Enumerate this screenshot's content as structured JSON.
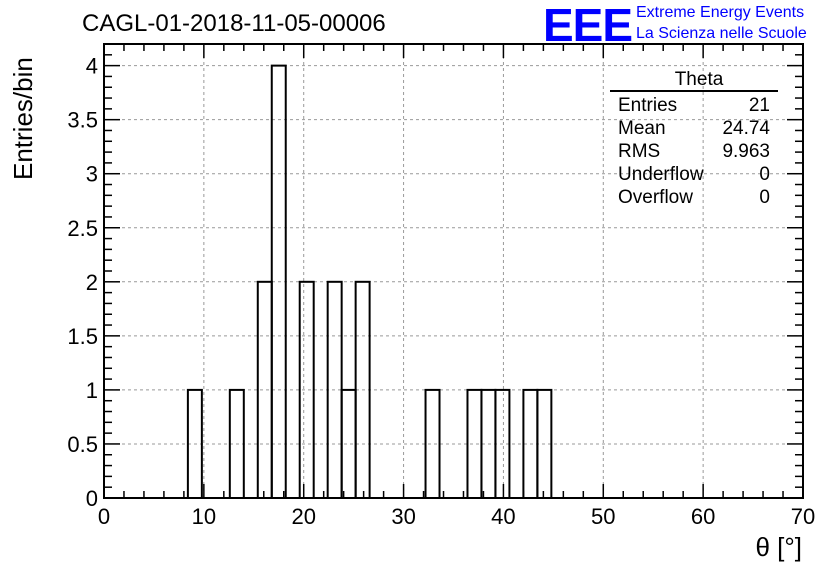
{
  "header": {
    "title": "CAGL-01-2018-11-05-00006",
    "logo": "EEE",
    "logo_line1": "Extreme Energy Events",
    "logo_line2": "La Scienza nelle Scuole"
  },
  "stats_box": {
    "title": "Theta",
    "rows": [
      {
        "label": "Entries",
        "value": "21"
      },
      {
        "label": "Mean",
        "value": "24.74"
      },
      {
        "label": "RMS",
        "value": "9.963"
      },
      {
        "label": "Underflow",
        "value": "0"
      },
      {
        "label": "Overflow",
        "value": "0"
      }
    ]
  },
  "chart_data": {
    "type": "bar",
    "histogram": true,
    "title": "CAGL-01-2018-11-05-00006",
    "xlabel": "θ [°]",
    "ylabel": "Entries/bin",
    "xlim": [
      0,
      70
    ],
    "ylim": [
      0,
      4.2
    ],
    "bin_width": 1.4,
    "x_ticks": [
      "0",
      "10",
      "20",
      "30",
      "40",
      "50",
      "60",
      "70"
    ],
    "y_ticks": [
      "0",
      "0.5",
      "1",
      "1.5",
      "2",
      "2.5",
      "3",
      "3.5",
      "4"
    ],
    "grid": true,
    "legend": "top-right",
    "bins": [
      {
        "x0": 8.4,
        "x1": 9.8,
        "value": 1
      },
      {
        "x0": 12.6,
        "x1": 14.0,
        "value": 1
      },
      {
        "x0": 15.4,
        "x1": 16.8,
        "value": 2
      },
      {
        "x0": 16.8,
        "x1": 18.2,
        "value": 4
      },
      {
        "x0": 19.6,
        "x1": 21.0,
        "value": 2
      },
      {
        "x0": 22.4,
        "x1": 23.8,
        "value": 2
      },
      {
        "x0": 23.8,
        "x1": 25.2,
        "value": 1
      },
      {
        "x0": 25.2,
        "x1": 26.6,
        "value": 2
      },
      {
        "x0": 32.2,
        "x1": 33.6,
        "value": 1
      },
      {
        "x0": 36.4,
        "x1": 37.8,
        "value": 1
      },
      {
        "x0": 37.8,
        "x1": 39.2,
        "value": 1
      },
      {
        "x0": 39.2,
        "x1": 40.6,
        "value": 1
      },
      {
        "x0": 42.0,
        "x1": 43.4,
        "value": 1
      },
      {
        "x0": 43.4,
        "x1": 44.8,
        "value": 1
      }
    ]
  }
}
